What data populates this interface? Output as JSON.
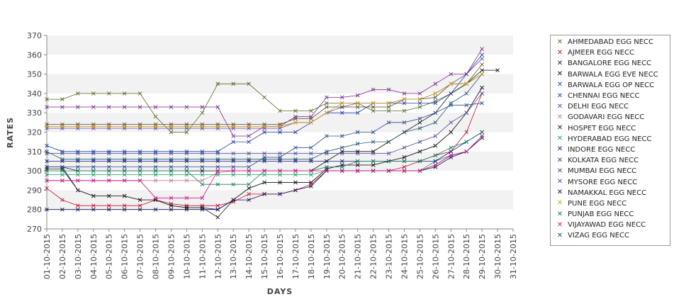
{
  "chart_data": {
    "type": "line",
    "xlabel": "DAYS",
    "ylabel": "RATES",
    "ylim": [
      270,
      370
    ],
    "yticks": [
      270,
      280,
      290,
      300,
      310,
      320,
      330,
      340,
      350,
      360,
      370
    ],
    "grid": "horizontal bands",
    "legend_position": "right",
    "categories": [
      "01-10-2015",
      "02-10-2015",
      "03-10-2015",
      "04-10-2015",
      "05-10-2015",
      "06-10-2015",
      "07-10-2015",
      "08-10-2015",
      "09-10-2015",
      "10-10-2015",
      "11-10-2015",
      "12-10-2015",
      "13-10-2015",
      "14-10-2015",
      "15-10-2015",
      "16-10-2015",
      "17-10-2015",
      "18-10-2015",
      "19-10-2015",
      "20-10-2015",
      "21-10-2015",
      "22-10-2015",
      "23-10-2015",
      "24-10-2015",
      "25-10-2015",
      "26-10-2015",
      "27-10-2015",
      "28-10-2015",
      "29-10-2015",
      "30-10-2015",
      "31-10-2015"
    ],
    "series": [
      {
        "name": "AHMEDABAD EGG NECC",
        "color": "#556b1f",
        "values": [
          337,
          337,
          340,
          340,
          340,
          340,
          340,
          328,
          320,
          320,
          330,
          345,
          345,
          345,
          338,
          331,
          331,
          331,
          335,
          335,
          335,
          331,
          331,
          331,
          333,
          336,
          340,
          345,
          355,
          null,
          null
        ]
      },
      {
        "name": "AJMEER EGG NECC",
        "color": "#c8102e",
        "values": [
          291,
          285,
          282,
          282,
          282,
          282,
          282,
          285,
          283,
          282,
          282,
          282,
          284,
          288,
          288,
          288,
          290,
          293,
          300,
          300,
          300,
          300,
          300,
          302,
          305,
          308,
          310,
          320,
          340,
          null,
          null
        ]
      },
      {
        "name": "BANGALORE EGG NECC",
        "color": "#1a1a5c",
        "values": [
          302,
          302,
          290,
          287,
          287,
          287,
          285,
          285,
          282,
          281,
          281,
          280,
          285,
          291,
          294,
          294,
          294,
          294,
          301,
          303,
          303,
          303,
          305,
          307,
          310,
          313,
          320,
          330,
          343,
          null,
          null
        ]
      },
      {
        "name": "BARWALA EGG EVE NECC",
        "color": "#111111",
        "values": [
          302,
          302,
          300,
          300,
          300,
          300,
          300,
          300,
          300,
          300,
          300,
          300,
          300,
          300,
          300,
          300,
          300,
          300,
          305,
          310,
          310,
          310,
          315,
          320,
          325,
          330,
          340,
          345,
          352,
          352,
          null
        ]
      },
      {
        "name": "BARWALA EGG OP NECC",
        "color": "#1c5a6e",
        "values": [
          310,
          306,
          306,
          306,
          306,
          306,
          306,
          306,
          306,
          306,
          306,
          306,
          306,
          306,
          306,
          306,
          306,
          306,
          310,
          312,
          314,
          315,
          315,
          320,
          322,
          325,
          335,
          340,
          350,
          null,
          null
        ]
      },
      {
        "name": "CHENNAI EGG NECC",
        "color": "#1f3fa8",
        "values": [
          313,
          310,
          310,
          310,
          310,
          310,
          310,
          310,
          310,
          310,
          310,
          310,
          315,
          315,
          320,
          320,
          320,
          325,
          330,
          330,
          330,
          335,
          335,
          335,
          335,
          335,
          340,
          350,
          360,
          null,
          null
        ]
      },
      {
        "name": "DELHI EGG NECC",
        "color": "#6a3fa8",
        "values": [
          322,
          322,
          322,
          322,
          322,
          322,
          322,
          322,
          322,
          322,
          322,
          322,
          322,
          322,
          322,
          322,
          325,
          325,
          330,
          333,
          335,
          335,
          335,
          337,
          337,
          340,
          345,
          350,
          358,
          null,
          null
        ]
      },
      {
        "name": "GODAVARI EGG NECC",
        "color": "#c77d9a",
        "values": [
          295,
          295,
          295,
          295,
          295,
          295,
          295,
          295,
          295,
          295,
          295,
          299,
          300,
          300,
          300,
          300,
          300,
          300,
          300,
          300,
          300,
          300,
          300,
          300,
          300,
          303,
          308,
          310,
          318,
          null,
          null
        ]
      },
      {
        "name": "HOSPET EGG NECC",
        "color": "#222222",
        "values": [
          301,
          301,
          290,
          287,
          287,
          287,
          285,
          285,
          282,
          281,
          281,
          276,
          285,
          291,
          294,
          294,
          294,
          294,
          301,
          303,
          303,
          303,
          305,
          307,
          310,
          313,
          320,
          330,
          343,
          null,
          null
        ]
      },
      {
        "name": "HYDERABAD EGG NECC",
        "color": "#1aa06a",
        "values": [
          298,
          298,
          298,
          298,
          298,
          298,
          298,
          298,
          298,
          298,
          298,
          298,
          298,
          298,
          298,
          298,
          298,
          298,
          300,
          300,
          300,
          300,
          300,
          300,
          300,
          305,
          308,
          310,
          318,
          null,
          null
        ]
      },
      {
        "name": "INDORE EGG NECC",
        "color": "#1a1a7a",
        "values": [
          305,
          305,
          305,
          305,
          305,
          305,
          305,
          305,
          305,
          305,
          305,
          305,
          305,
          305,
          305,
          305,
          305,
          305,
          305,
          305,
          305,
          305,
          305,
          305,
          305,
          305,
          310,
          315,
          320,
          null,
          null
        ]
      },
      {
        "name": "KOLKATA EGG NECC",
        "color": "#4a4a30",
        "values": [
          324,
          324,
          324,
          324,
          324,
          324,
          324,
          324,
          324,
          324,
          324,
          324,
          324,
          324,
          324,
          324,
          327,
          327,
          333,
          333,
          333,
          333,
          333,
          337,
          337,
          338,
          345,
          345,
          350,
          null,
          null
        ]
      },
      {
        "name": "MUMBAI EGG NECC",
        "color": "#7a2a8a",
        "values": [
          333,
          333,
          333,
          333,
          333,
          333,
          333,
          333,
          333,
          333,
          333,
          333,
          318,
          318,
          323,
          323,
          328,
          328,
          338,
          338,
          339,
          342,
          342,
          340,
          340,
          345,
          350,
          350,
          363,
          null,
          null
        ]
      },
      {
        "name": "MYSORE EGG NECC",
        "color": "#4a4aa0",
        "values": [
          309,
          309,
          309,
          309,
          309,
          309,
          309,
          309,
          309,
          309,
          309,
          309,
          309,
          309,
          309,
          309,
          309,
          309,
          309,
          309,
          309,
          309,
          309,
          312,
          315,
          318,
          325,
          330,
          340,
          null,
          null
        ]
      },
      {
        "name": "NAMAKKAL EGG NECC",
        "color": "#101050",
        "values": [
          280,
          280,
          280,
          280,
          280,
          280,
          280,
          280,
          280,
          280,
          280,
          280,
          285,
          285,
          288,
          288,
          290,
          292,
          300,
          300,
          300,
          300,
          300,
          300,
          300,
          302,
          307,
          310,
          317,
          null,
          null
        ]
      },
      {
        "name": "PUNE EGG NECC",
        "color": "#d4a017",
        "values": [
          323,
          323,
          323,
          323,
          323,
          323,
          323,
          323,
          323,
          323,
          323,
          323,
          323,
          323,
          323,
          323,
          325,
          325,
          330,
          335,
          335,
          335,
          335,
          337,
          337,
          340,
          345,
          345,
          350,
          null,
          null
        ]
      },
      {
        "name": "PUNJAB EGG NECC",
        "color": "#1a7a5a",
        "values": [
          300,
          300,
          300,
          300,
          300,
          300,
          300,
          300,
          300,
          300,
          293,
          293,
          293,
          293,
          300,
          300,
          300,
          300,
          302,
          302,
          305,
          305,
          305,
          305,
          305,
          308,
          312,
          315,
          320,
          null,
          null
        ]
      },
      {
        "name": "VIJAYAWAD EGG NECC",
        "color": "#d4108a",
        "values": [
          295,
          295,
          295,
          295,
          295,
          295,
          295,
          286,
          286,
          286,
          286,
          300,
          300,
          300,
          300,
          300,
          300,
          300,
          300,
          300,
          300,
          300,
          300,
          300,
          300,
          303,
          308,
          310,
          318,
          null,
          null
        ]
      },
      {
        "name": "VIZAG EGG NECC",
        "color": "#2a4a8a",
        "values": [
          302,
          302,
          302,
          302,
          302,
          302,
          302,
          302,
          302,
          302,
          302,
          302,
          302,
          302,
          307,
          307,
          312,
          312,
          318,
          318,
          320,
          320,
          325,
          325,
          327,
          330,
          334,
          334,
          335,
          null,
          null
        ]
      }
    ]
  }
}
